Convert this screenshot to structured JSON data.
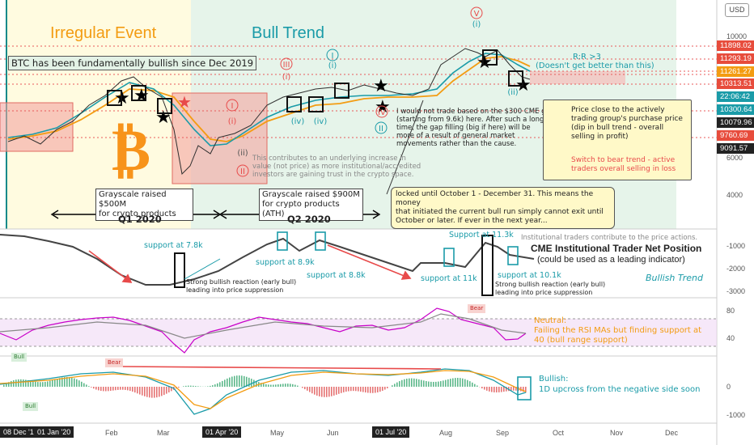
{
  "chart_data": [
    {
      "type": "line",
      "title": "",
      "x_ticks": [
        "08 Dec '19",
        "01 Jan '20",
        "Feb",
        "Mar",
        "01 Apr '20",
        "May",
        "Jun",
        "01 Jul '20",
        "Aug",
        "Sep",
        "Oct",
        "Nov",
        "Dec"
      ],
      "y_ticks": [
        4000,
        6000,
        10000
      ],
      "price_tags": [
        "11898.02",
        "11293.19",
        "11261.27",
        "10313.51",
        "22:06:42",
        "10300.64",
        "10079.96",
        "9760.69",
        "9091.57"
      ],
      "annotations": {
        "irregular_event": "Irregular Event",
        "bull_trend": "Bull Trend",
        "fundamental": "BTC has been fundamentally bullish since Dec 2019",
        "rr": "R:R >3",
        "rr_sub": "(Doesn't get better than this)",
        "gray1": "Grayscale raised $500M\nfor crypto products",
        "gray2": "Grayscale raised $900M\nfor crypto products (ATH)",
        "q1": "Q1 2020",
        "q2": "Q2 2020",
        "contrib": "This contributes to an underlying increase in\nvalue (not price) as more institutional/accredited\ninvestors are gaining trust in the crypto space.",
        "cme_gap": "I would not trade based on the $300 CME gap\n(starting from 9.6k) here. After such a long\ntime, the gap filling (big if here) will be\nmore of a result of general market\nmovements rather than the cause.",
        "locked": "locked until October 1 - December 31. This means the money\nthat initiated the current bull run simply cannot exit until\nOctober or later. If ever in the next year...",
        "legend_black": "Price close to the actively\ntrading group's purchase price\n(dip in bull trend - overall\nselling in profit)",
        "legend_red": "Switch to bear trend - active\ntraders overall selling in loss",
        "wave_labels": [
          "V",
          "(i)",
          "III",
          "(i)",
          "I",
          "(i)",
          "(ii)",
          "II",
          "(iv)",
          "IV",
          "(iv)",
          "II",
          "(ii)"
        ]
      },
      "currency": "USD"
    },
    {
      "type": "line",
      "title": "CME Institutional Trader Net Position",
      "subtitle": "(could be used as a leading indicator)",
      "y_ticks": [
        -1000,
        -2000,
        -3000
      ],
      "annotations": {
        "top": "Institutional traders contribute to the price actions.",
        "s1": "support at 7.8k",
        "s2": "support at 8.9k",
        "s3": "support at 8.8k",
        "s4": "support at 11k",
        "s5": "Support at 11.3k",
        "s6": "support at 10.1k",
        "strong1": "Strong bullish reaction (early bull)\nleading into price suppression",
        "strong2": "Strong bullish reaction (early bull)\nleading into price suppression",
        "trend": "Bullish Trend"
      }
    },
    {
      "type": "line",
      "title": "RSI",
      "y_ticks": [
        80,
        40
      ],
      "annotations": {
        "neutral": "Neutral:",
        "neutral_text": "Failing the RSI MAs but finding support at\n40 (bull range support)",
        "bull": "Bull",
        "bear": "Bear"
      }
    },
    {
      "type": "bar",
      "title": "MACD",
      "y_ticks": [
        0.0,
        -1000.0
      ],
      "annotations": {
        "bullish": "Bullish:",
        "bullish_text": "1D upcross from the negative side soon",
        "bull": "Bull",
        "bear": "Bear"
      }
    }
  ]
}
